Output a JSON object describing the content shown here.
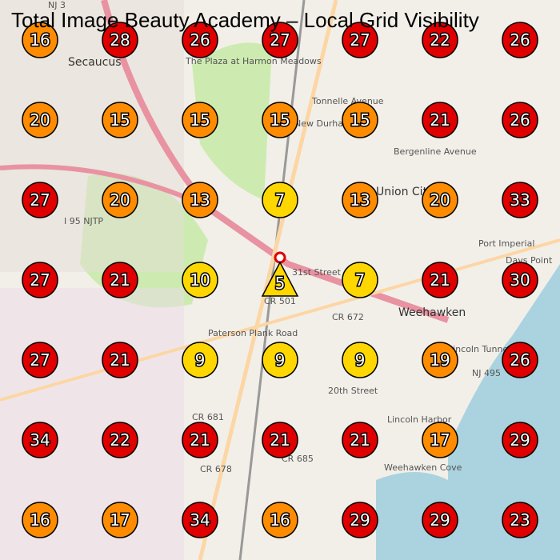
{
  "title": "Total Image Beauty Academy – Local Grid Visibility",
  "grid": [
    [
      16,
      28,
      26,
      27,
      27,
      22,
      26
    ],
    [
      20,
      15,
      15,
      15,
      15,
      21,
      26
    ],
    [
      27,
      20,
      13,
      7,
      13,
      20,
      33
    ],
    [
      27,
      21,
      10,
      5,
      7,
      21,
      30
    ],
    [
      27,
      21,
      9,
      9,
      9,
      19,
      26
    ],
    [
      34,
      22,
      21,
      21,
      21,
      17,
      29
    ],
    [
      16,
      17,
      34,
      16,
      29,
      29,
      23
    ]
  ],
  "color_scale": [
    {
      "max": 11,
      "color": "#ffd700"
    },
    {
      "max": 20,
      "color": "#ff8c00"
    },
    {
      "max": 99,
      "color": "#e00000"
    }
  ],
  "map_labels": [
    "Secaucus",
    "Union City",
    "Weehawken",
    "New Durham",
    "Tonnelle Avenue",
    "Bergenline Avenue",
    "Port Imperial",
    "Days Point",
    "Lincoln Harbor",
    "The Plaza at Harmon Meadows",
    "Weehawken Cove",
    "CR 501",
    "CR 672",
    "CR 681",
    "CR 678",
    "CR 685",
    "NJ 3",
    "NJ 495",
    "I 95 NJTP",
    "31st Street",
    "20th Street",
    "Paterson Plank Road",
    "Lincoln Tunnel"
  ]
}
